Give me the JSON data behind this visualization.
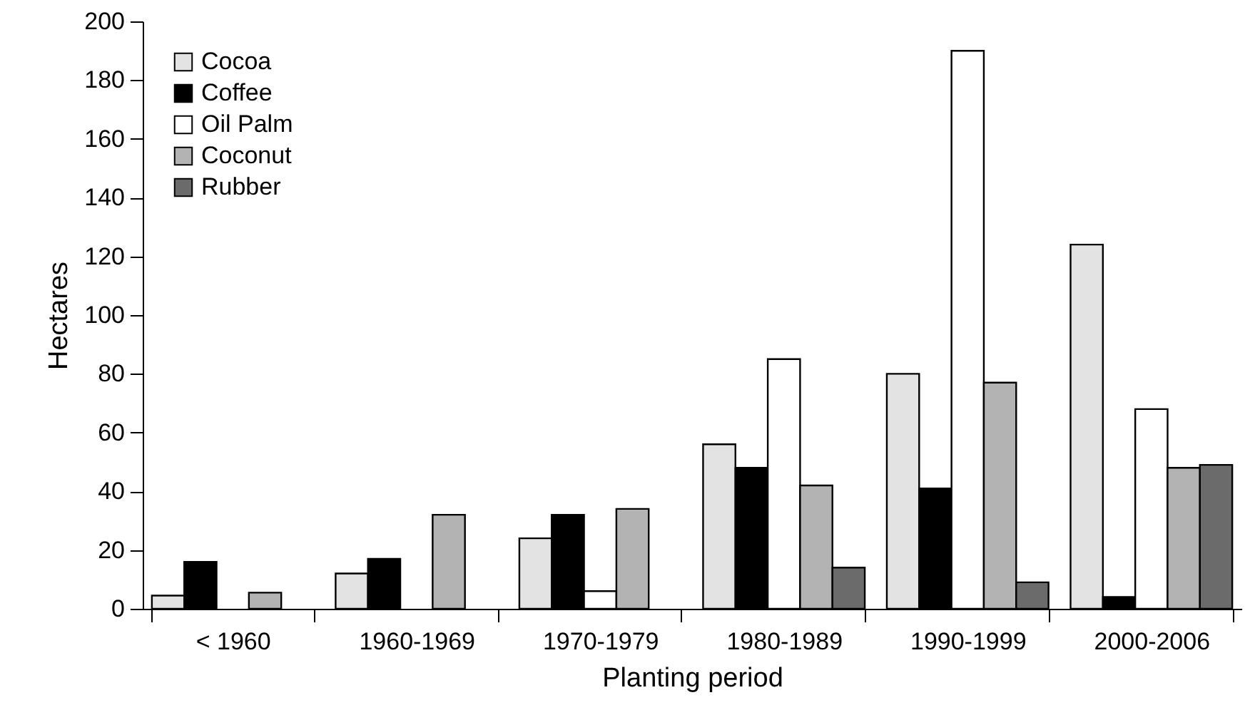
{
  "chart_data": {
    "type": "bar",
    "xlabel": "Planting period",
    "ylabel": "Hectares",
    "categories": [
      "< 1960",
      "1960-1969",
      "1970-1979",
      "1980-1989",
      "1990-1999",
      "2000-2006"
    ],
    "series": [
      {
        "name": "Cocoa",
        "color": "#e3e3e3",
        "values": [
          4.5,
          12,
          24,
          56,
          80,
          124
        ]
      },
      {
        "name": "Coffee",
        "color": "#000000",
        "values": [
          16,
          17,
          32,
          48,
          41,
          4
        ]
      },
      {
        "name": "Oil Palm",
        "color": "#ffffff",
        "values": [
          null,
          null,
          6,
          85,
          190,
          68
        ]
      },
      {
        "name": "Coconut",
        "color": "#b3b3b3",
        "values": [
          5.5,
          32,
          34,
          42,
          77,
          48
        ]
      },
      {
        "name": "Rubber",
        "color": "#6b6b6b",
        "values": [
          null,
          null,
          null,
          14,
          9,
          49
        ]
      }
    ],
    "ylim": [
      0,
      200
    ],
    "yticks": [
      0,
      20,
      40,
      60,
      80,
      100,
      120,
      140,
      160,
      180,
      200
    ],
    "grid": false,
    "legend": "top left"
  }
}
